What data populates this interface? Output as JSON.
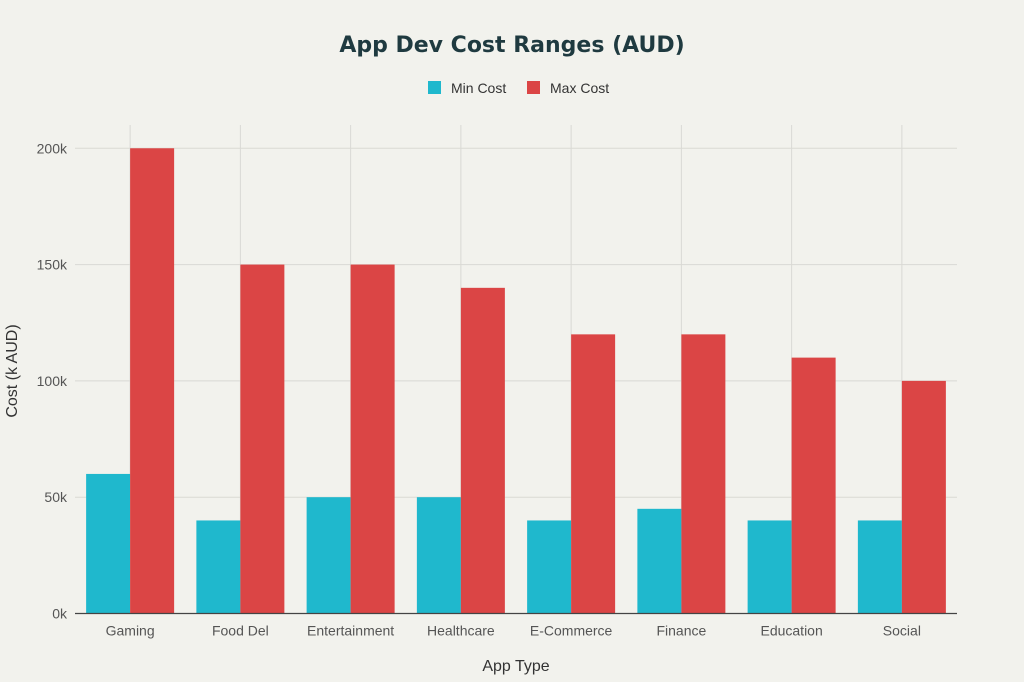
{
  "chart_data": {
    "type": "bar",
    "title": "App Dev Cost Ranges (AUD)",
    "xlabel": "App Type",
    "ylabel": "Cost (k AUD)",
    "categories": [
      "Gaming",
      "Food Del",
      "Entertainment",
      "Healthcare",
      "E-Commerce",
      "Finance",
      "Education",
      "Social"
    ],
    "series": [
      {
        "name": "Min Cost",
        "color": "#1fb8cd",
        "values": [
          60,
          40,
          50,
          50,
          40,
          45,
          40,
          40
        ]
      },
      {
        "name": "Max Cost",
        "color": "#db4545",
        "values": [
          200,
          150,
          150,
          140,
          120,
          120,
          110,
          100
        ]
      }
    ],
    "ylim": [
      0,
      210
    ],
    "yticks": [
      0,
      50,
      100,
      150,
      200
    ],
    "ytick_labels": [
      "0k",
      "50k",
      "100k",
      "150k",
      "200k"
    ],
    "grid": true,
    "legend": "top-center"
  }
}
